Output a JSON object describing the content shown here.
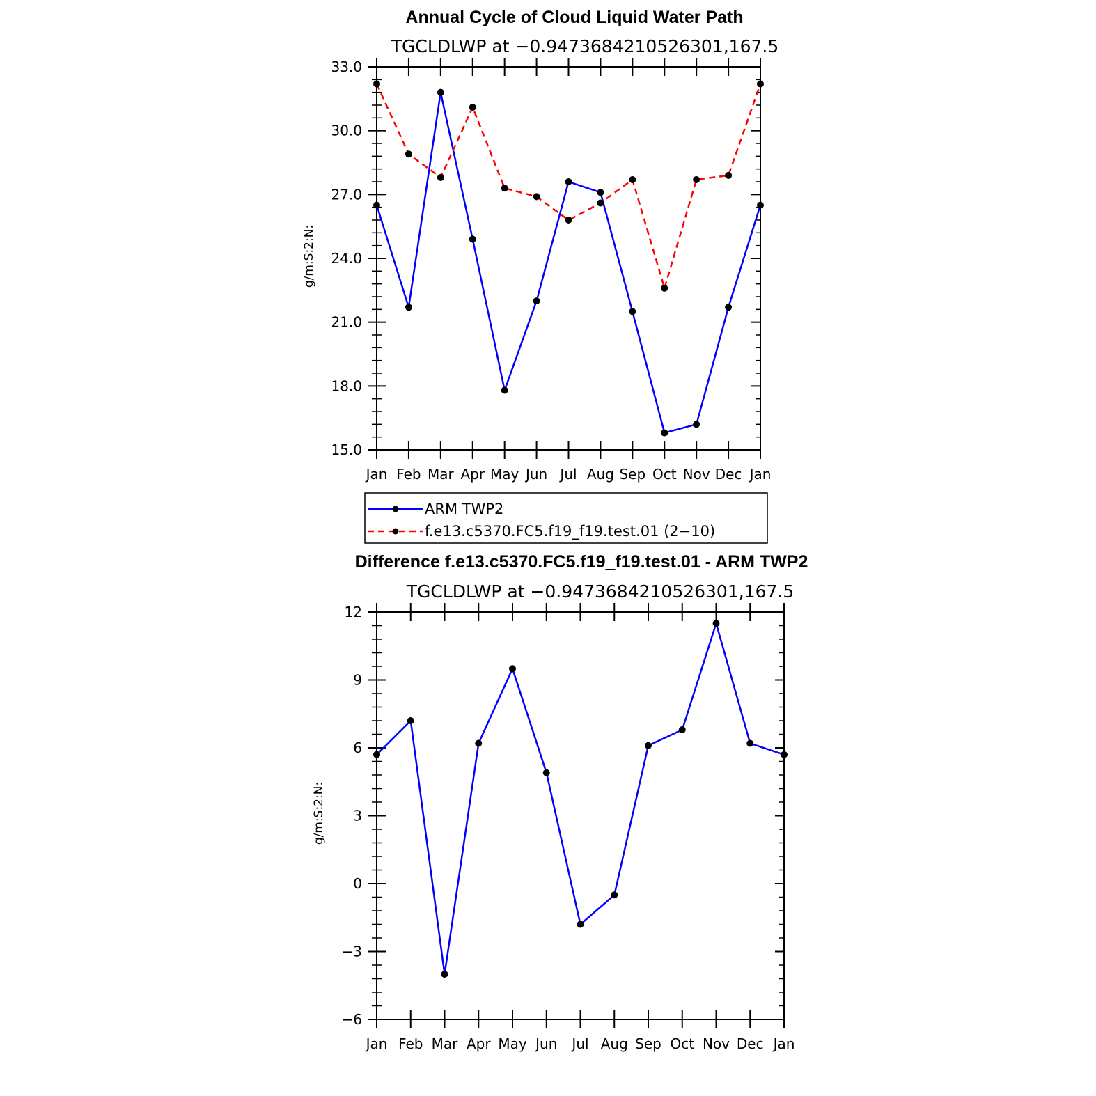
{
  "chart_data": [
    {
      "type": "line",
      "title": "Annual Cycle of Cloud Liquid Water Path",
      "subtitle": "TGCLDLWP at −0.9473684210526301,167.5",
      "xlabel": "",
      "ylabel": "g/m:S:2:N:",
      "categories": [
        "Jan",
        "Feb",
        "Mar",
        "Apr",
        "May",
        "Jun",
        "Jul",
        "Aug",
        "Sep",
        "Oct",
        "Nov",
        "Dec",
        "Jan"
      ],
      "ylim": [
        15.0,
        33.0
      ],
      "yticks": [
        "15.0",
        "18.0",
        "21.0",
        "24.0",
        "27.0",
        "30.0",
        "33.0"
      ],
      "series": [
        {
          "name": "ARM TWP2",
          "color": "#0000ff",
          "dash": "solid",
          "values": [
            26.5,
            21.7,
            31.8,
            24.9,
            17.8,
            22.0,
            27.6,
            27.1,
            21.5,
            15.8,
            16.2,
            21.7,
            26.5
          ]
        },
        {
          "name": "f.e13.c5370.FC5.f19_f19.test.01 (2−10)",
          "color": "#ff0000",
          "dash": "dashed",
          "values": [
            32.2,
            28.9,
            27.8,
            31.1,
            27.3,
            26.9,
            25.8,
            26.6,
            27.7,
            22.6,
            27.7,
            27.9,
            32.2
          ]
        }
      ],
      "legend": {
        "position": "bottom",
        "entries": [
          "ARM TWP2",
          "f.e13.c5370.FC5.f19_f19.test.01 (2−10)"
        ]
      }
    },
    {
      "type": "line",
      "title": "Difference f.e13.c5370.FC5.f19_f19.test.01 - ARM TWP2",
      "subtitle": "TGCLDLWP at −0.9473684210526301,167.5",
      "xlabel": "",
      "ylabel": "g/m:S:2:N:",
      "categories": [
        "Jan",
        "Feb",
        "Mar",
        "Apr",
        "May",
        "Jun",
        "Jul",
        "Aug",
        "Sep",
        "Oct",
        "Nov",
        "Dec",
        "Jan"
      ],
      "ylim": [
        -6,
        12
      ],
      "yticks": [
        "−6",
        "−3",
        "0",
        "3",
        "6",
        "9",
        "12"
      ],
      "series": [
        {
          "name": "Difference",
          "color": "#0000ff",
          "dash": "solid",
          "values": [
            5.7,
            7.2,
            -4.0,
            6.2,
            9.5,
            4.9,
            -1.8,
            -0.5,
            6.1,
            6.8,
            11.5,
            6.2,
            5.7
          ]
        }
      ]
    }
  ]
}
